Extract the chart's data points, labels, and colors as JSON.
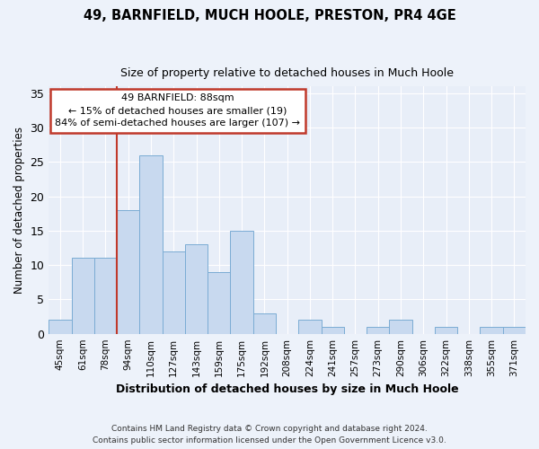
{
  "title": "49, BARNFIELD, MUCH HOOLE, PRESTON, PR4 4GE",
  "subtitle": "Size of property relative to detached houses in Much Hoole",
  "xlabel": "Distribution of detached houses by size in Much Hoole",
  "ylabel": "Number of detached properties",
  "categories": [
    "45sqm",
    "61sqm",
    "78sqm",
    "94sqm",
    "110sqm",
    "127sqm",
    "143sqm",
    "159sqm",
    "175sqm",
    "192sqm",
    "208sqm",
    "224sqm",
    "241sqm",
    "257sqm",
    "273sqm",
    "290sqm",
    "306sqm",
    "322sqm",
    "338sqm",
    "355sqm",
    "371sqm"
  ],
  "values": [
    2,
    11,
    11,
    18,
    26,
    12,
    13,
    9,
    15,
    3,
    0,
    2,
    1,
    0,
    1,
    2,
    0,
    1,
    0,
    1,
    1
  ],
  "bar_color": "#c8d9ef",
  "bar_edge_color": "#7bacd4",
  "background_color": "#e8eef8",
  "grid_color": "#ffffff",
  "annotation_line1": "49 BARNFIELD: 88sqm",
  "annotation_line2": "← 15% of detached houses are smaller (19)",
  "annotation_line3": "84% of semi-detached houses are larger (107) →",
  "vline_color": "#c0392b",
  "property_sqm": 88,
  "annotation_box_color": "#ffffff",
  "annotation_box_edge": "#c0392b",
  "ylim": [
    0,
    36
  ],
  "footnote_line1": "Contains HM Land Registry data © Crown copyright and database right 2024.",
  "footnote_line2": "Contains public sector information licensed under the Open Government Licence v3.0."
}
